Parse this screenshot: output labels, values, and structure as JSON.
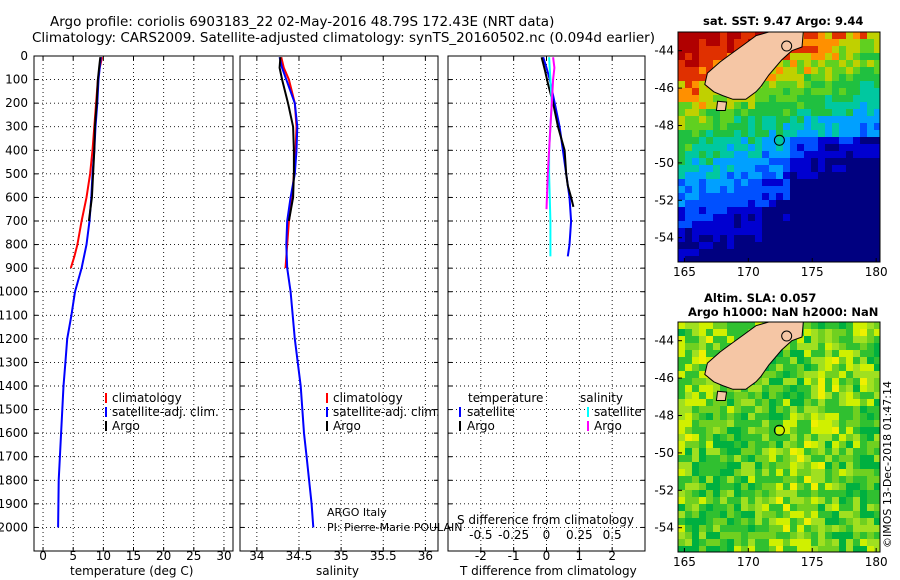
{
  "header": {
    "line1": "Argo profile: coriolis 6903183_22 02-May-2016 48.79S 172.43E (NRT data)",
    "line2": "Climatology: CARS2009. Satellite-adjusted climatology: synTS_20160502.nc (0.094d earlier)"
  },
  "colors": {
    "climatology": "#ff0000",
    "satellite": "#0000ff",
    "argo": "#000000",
    "salinity_satellite": "#00ffff",
    "salinity_argo": "#ff00ff"
  },
  "chart_data": [
    {
      "type": "line",
      "panel": "temperature",
      "xlabel": "temperature (deg C)",
      "xlim": [
        -1.5,
        31.5
      ],
      "xticks": [
        "0",
        "5",
        "10",
        "15",
        "20",
        "25",
        "30"
      ],
      "ylim": [
        2100,
        0
      ],
      "yticks": [
        "0",
        "100",
        "200",
        "300",
        "400",
        "500",
        "600",
        "700",
        "800",
        "900",
        "1000",
        "1100",
        "1200",
        "1300",
        "1400",
        "1500",
        "1600",
        "1700",
        "1800",
        "1900",
        "2000"
      ],
      "legend": [
        "climatology",
        "satellite-adj. clim.",
        "Argo"
      ],
      "series": [
        {
          "name": "climatology",
          "x": [
            9.8,
            9.4,
            9.1,
            8.8,
            8.5,
            8.2,
            7.8,
            7.2,
            6.4,
            5.7,
            5.2,
            4.6
          ],
          "y": [
            5,
            50,
            100,
            200,
            300,
            400,
            500,
            600,
            700,
            800,
            850,
            900
          ]
        },
        {
          "name": "satellite-adj. clim.",
          "x": [
            9.6,
            9.4,
            9.2,
            9.0,
            8.7,
            8.5,
            8.2,
            8.0,
            7.7,
            7.2,
            6.4,
            5.3,
            4.7,
            4.0,
            3.7,
            3.4,
            3.2,
            3.0,
            2.8,
            2.6,
            2.5
          ],
          "y": [
            5,
            50,
            100,
            200,
            300,
            400,
            500,
            600,
            700,
            800,
            900,
            1000,
            1100,
            1200,
            1300,
            1400,
            1500,
            1600,
            1700,
            1800,
            2000
          ]
        },
        {
          "name": "Argo",
          "x": [
            9.5,
            9.3,
            9.1,
            8.9,
            8.6,
            8.5,
            8.3,
            8.1,
            7.6
          ],
          "y": [
            5,
            50,
            100,
            200,
            300,
            400,
            500,
            600,
            700
          ]
        }
      ]
    },
    {
      "type": "line",
      "panel": "salinity",
      "xlabel": "salinity",
      "xlim": [
        33.8,
        36.15
      ],
      "xticks": [
        "34",
        "34.5",
        "35",
        "35.5",
        "36"
      ],
      "ylim": [
        2100,
        0
      ],
      "legend": [
        "climatology",
        "satellite-adj. clim.",
        "Argo"
      ],
      "series": [
        {
          "name": "climatology",
          "x": [
            34.29,
            34.32,
            34.38,
            34.45,
            34.47,
            34.46,
            34.44,
            34.42,
            34.38,
            34.36,
            34.34
          ],
          "y": [
            5,
            50,
            100,
            200,
            300,
            400,
            500,
            600,
            700,
            800,
            900
          ]
        },
        {
          "name": "satellite-adj. clim.",
          "x": [
            34.27,
            34.3,
            34.35,
            34.45,
            34.48,
            34.47,
            34.45,
            34.4,
            34.36,
            34.35,
            34.36,
            34.4,
            34.45,
            34.52,
            34.56,
            34.59,
            34.62,
            34.65,
            34.67
          ],
          "y": [
            5,
            50,
            100,
            200,
            300,
            400,
            500,
            600,
            700,
            800,
            900,
            1000,
            1200,
            1400,
            1600,
            1700,
            1800,
            1900,
            2000
          ]
        },
        {
          "name": "Argo",
          "x": [
            34.28,
            34.27,
            34.3,
            34.37,
            34.43,
            34.44,
            34.44,
            34.43,
            34.38
          ],
          "y": [
            5,
            50,
            100,
            200,
            300,
            400,
            500,
            600,
            700
          ]
        }
      ]
    },
    {
      "type": "line",
      "panel": "difference",
      "xlabel": "T difference from climatology",
      "xlabel2": "S difference from climatology",
      "xlim": [
        -3,
        3
      ],
      "xticks": [
        "-2",
        "-1",
        "0",
        "1",
        "2"
      ],
      "xticks2": [
        "-0.5",
        "-0.25",
        "0",
        "0.25",
        "0.5"
      ],
      "ylim": [
        2100,
        0
      ],
      "legend": {
        "temperature_title": "temperature",
        "salinity_title": "salinity",
        "t_satellite": "satellite",
        "t_argo": "Argo",
        "s_satellite": "satellite",
        "s_argo": "Argo"
      },
      "series": [
        {
          "name": "T satellite",
          "x": [
            -0.1,
            0.0,
            0.1,
            0.25,
            0.4,
            0.5,
            0.6,
            0.7,
            0.75,
            0.7,
            0.65
          ],
          "y": [
            5,
            50,
            100,
            200,
            300,
            400,
            500,
            600,
            700,
            800,
            850
          ]
        },
        {
          "name": "T Argo",
          "x": [
            -0.15,
            -0.05,
            0.05,
            0.2,
            0.35,
            0.55,
            0.6,
            0.65,
            0.75,
            0.82
          ],
          "y": [
            5,
            60,
            120,
            200,
            300,
            400,
            500,
            550,
            600,
            640
          ]
        },
        {
          "name": "S satellite",
          "x": [
            0.02,
            0.03,
            0.04,
            0.03,
            0.02,
            0.02,
            0.03,
            0.03
          ],
          "y": [
            5,
            100,
            200,
            300,
            400,
            500,
            700,
            850
          ]
        },
        {
          "name": "S Argo",
          "x": [
            0.05,
            0.06,
            0.05,
            0.04,
            0.03,
            0.02,
            0.01,
            0.0
          ],
          "y": [
            5,
            50,
            100,
            200,
            300,
            400,
            500,
            650
          ]
        }
      ]
    }
  ],
  "maps": {
    "sst_title": "sat. SST: 9.47 Argo: 9.44",
    "sla_title1": "Altim. SLA: 0.057",
    "sla_title2": "Argo h1000: NaN h2000: NaN",
    "lat_ticks": [
      "-44",
      "-46",
      "-48",
      "-50",
      "-52",
      "-54"
    ],
    "lon_ticks": [
      "165",
      "170",
      "175",
      "180"
    ],
    "argo_lat": -48.79,
    "argo_lon": 172.43
  },
  "footer": {
    "institution": "ARGO Italy",
    "pi": "PI: Pierre-Marie POULAIN",
    "stamp": "©IMOS 13-Dec-2018 01:47:14"
  }
}
